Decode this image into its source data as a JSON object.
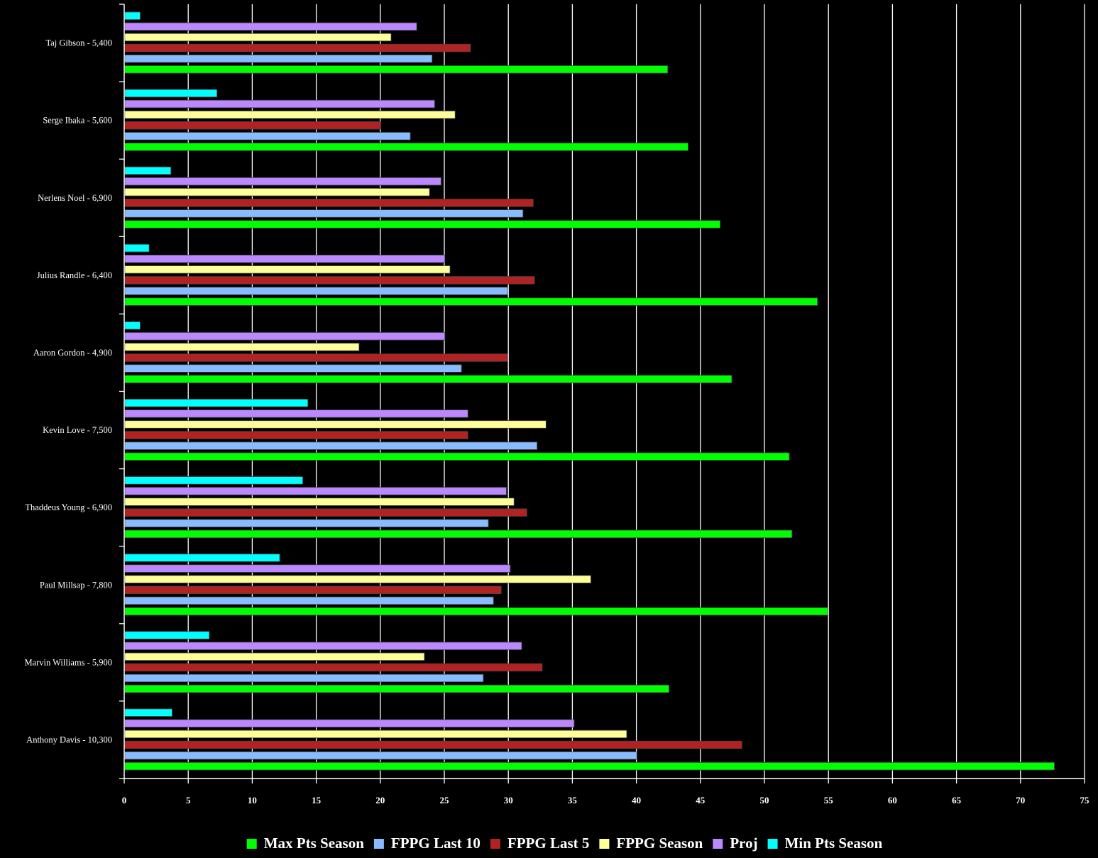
{
  "chart_data": {
    "type": "bar",
    "orientation": "horizontal",
    "title": "",
    "xlabel": "",
    "ylabel": "",
    "xlim": [
      0,
      75
    ],
    "x_ticks": [
      "0",
      "5",
      "10",
      "15",
      "20",
      "25",
      "30",
      "35",
      "40",
      "45",
      "50",
      "55",
      "60",
      "65",
      "70",
      "75"
    ],
    "grid": true,
    "legend_position": "bottom",
    "categories": [
      "Taj Gibson - 5,400",
      "Serge Ibaka - 5,600",
      "Nerlens Noel - 6,900",
      "Julius Randle - 6,400",
      "Aaron Gordon - 4,900",
      "Kevin Love - 7,500",
      "Thaddeus Young - 6,900",
      "Paul Millsap - 7,800",
      "Marvin Williams - 5,900",
      "Anthony Davis - 10,300"
    ],
    "series": [
      {
        "name": "Min Pts Season",
        "color": "#00ffff",
        "values": [
          1.2,
          7.2,
          3.6,
          1.9,
          1.2,
          14.3,
          13.9,
          12.1,
          6.6,
          3.7
        ]
      },
      {
        "name": "Proj",
        "color": "#bb88ff",
        "values": [
          22.8,
          24.2,
          24.7,
          25.0,
          25.0,
          26.8,
          29.8,
          30.1,
          31.0,
          35.1
        ]
      },
      {
        "name": "FPPG Season",
        "color": "#ffff99",
        "values": [
          20.8,
          25.8,
          23.8,
          25.4,
          18.3,
          32.9,
          30.4,
          36.4,
          23.4,
          39.2
        ]
      },
      {
        "name": "FPPG Last 5",
        "color": "#b22222",
        "values": [
          27.0,
          20.0,
          31.9,
          32.0,
          29.9,
          26.8,
          31.4,
          29.4,
          32.6,
          48.2
        ]
      },
      {
        "name": "FPPG Last 10",
        "color": "#88bbff",
        "values": [
          24.0,
          22.3,
          31.1,
          29.9,
          26.3,
          32.2,
          28.4,
          28.8,
          28.0,
          40.0
        ]
      },
      {
        "name": "Max Pts Season",
        "color": "#00ff00",
        "values": [
          42.4,
          44.0,
          46.5,
          54.1,
          47.4,
          51.9,
          52.1,
          54.9,
          42.5,
          72.6
        ]
      }
    ],
    "legend_order": [
      "Max Pts Season",
      "FPPG Last 10",
      "FPPG Last 5",
      "FPPG Season",
      "Proj",
      "Min Pts Season"
    ],
    "colors": {
      "background": "#000000",
      "axis": "#ffffff",
      "grid": "#ffffff",
      "text": "#ffffff",
      "bar_stroke": "#444444"
    }
  }
}
